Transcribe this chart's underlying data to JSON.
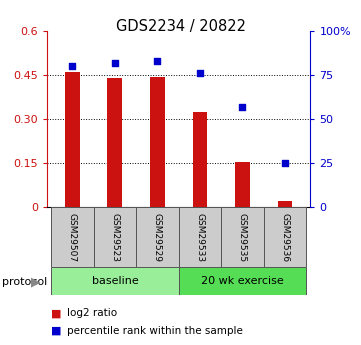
{
  "title": "GDS2234 / 20822",
  "samples": [
    "GSM29507",
    "GSM29523",
    "GSM29529",
    "GSM29533",
    "GSM29535",
    "GSM29536"
  ],
  "log2_ratio": [
    0.46,
    0.44,
    0.445,
    0.325,
    0.155,
    0.02
  ],
  "percentile_rank": [
    80,
    82,
    83,
    76,
    57,
    25
  ],
  "bar_color": "#cc1111",
  "dot_color": "#0000cc",
  "ylim_left": [
    0,
    0.6
  ],
  "ylim_right": [
    0,
    100
  ],
  "yticks_left": [
    0,
    0.15,
    0.3,
    0.45,
    0.6
  ],
  "ytick_labels_left": [
    "0",
    "0.15",
    "0.30",
    "0.45",
    "0.6"
  ],
  "yticks_right": [
    0,
    25,
    50,
    75,
    100
  ],
  "ytick_labels_right": [
    "0",
    "25",
    "50",
    "75",
    "100%"
  ],
  "grid_lines": [
    0.15,
    0.3,
    0.45
  ],
  "protocol_groups": [
    {
      "label": "baseline",
      "start": 0,
      "end": 3,
      "color": "#99ee99"
    },
    {
      "label": "20 wk exercise",
      "start": 3,
      "end": 6,
      "color": "#55dd55"
    }
  ],
  "legend": [
    {
      "color": "#cc1111",
      "label": "log2 ratio"
    },
    {
      "color": "#0000cc",
      "label": "percentile rank within the sample"
    }
  ],
  "protocol_label": "protocol",
  "bar_width": 0.35
}
